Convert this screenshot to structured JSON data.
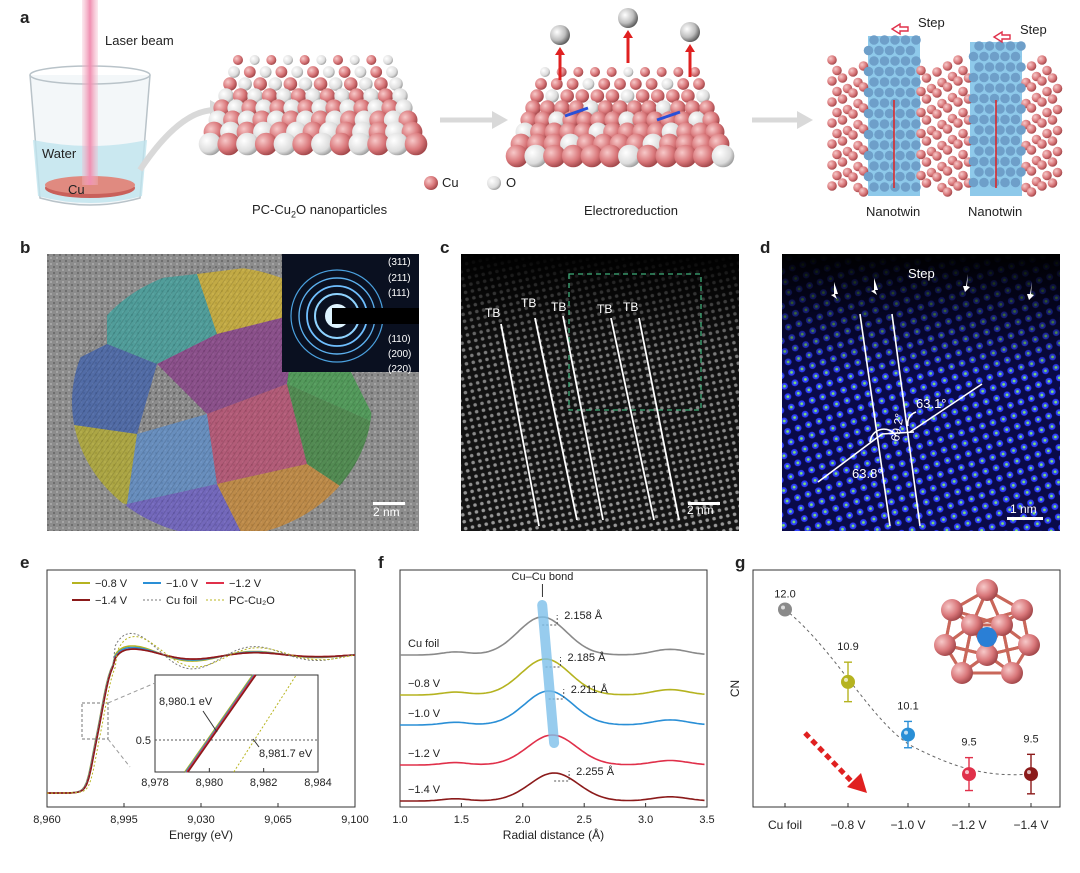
{
  "panel_letters": {
    "a": "a",
    "b": "b",
    "c": "c",
    "d": "d",
    "e": "e",
    "f": "f",
    "g": "g"
  },
  "panel_a": {
    "laser": "Laser beam",
    "water": "Water",
    "cu": "Cu",
    "caption1": "PC-Cu",
    "caption1_sub": "2",
    "caption1_tail": "O nanoparticles",
    "legend_cu": "Cu",
    "legend_o": "O",
    "caption2": "Electroreduction",
    "step1": "Step",
    "step2": "Step",
    "nanotwin1": "Nanotwin",
    "nanotwin2": "Nanotwin",
    "colors": {
      "cu": "#d9777a",
      "o": "#e8e8e8",
      "twin": "#8ec9ea"
    }
  },
  "panel_b": {
    "rings": [
      "(311)",
      "(211)",
      "(111)",
      "(110)",
      "(200)",
      "(220)"
    ],
    "scale": "2 nm"
  },
  "panel_c": {
    "tb_labels": [
      "TB",
      "TB",
      "TB",
      "TB",
      "TB"
    ],
    "scale": "2 nm"
  },
  "panel_d": {
    "step": "Step",
    "angle1": "63.1°",
    "angle2": "69.2°",
    "angle3": "63.8°",
    "scale": "1 nm"
  },
  "chart_data": [
    {
      "type": "line",
      "panel": "e",
      "xlabel": "Energy (eV)",
      "xlim": [
        8960,
        9100
      ],
      "xticks": [
        "8,960",
        "8,995",
        "9,030",
        "9,065",
        "9,100"
      ],
      "legend": [
        {
          "name": "−0.8 V",
          "color": "#b5b320",
          "dash": false
        },
        {
          "name": "−1.0 V",
          "color": "#2a8fd6",
          "dash": false
        },
        {
          "name": "−1.2 V",
          "color": "#e0304a",
          "dash": false
        },
        {
          "name": "−1.4 V",
          "color": "#8b1a1a",
          "dash": false
        },
        {
          "name": "Cu foil",
          "color": "#777777",
          "dash": true
        },
        {
          "name": "PC-Cu₂O",
          "color": "#b8b520",
          "dash": true
        }
      ],
      "inset": {
        "xticks": [
          "8,978",
          "8,980",
          "8,982",
          "8,984"
        ],
        "y_marker": "0.5",
        "ann1": "8,980.1 eV",
        "ann2": "8,981.7 eV"
      }
    },
    {
      "type": "line",
      "panel": "f",
      "xlabel": "Radial distance (Å)",
      "xlim": [
        1.0,
        3.5
      ],
      "xticks": [
        "1.0",
        "1.5",
        "2.0",
        "2.5",
        "3.0",
        "3.5"
      ],
      "bond_label": "Cu–Cu bond",
      "series": [
        {
          "name": "Cu foil",
          "color": "#8a8a8a",
          "peak": "2.158 Å",
          "peak_x": 2.158
        },
        {
          "name": "−0.8 V",
          "color": "#b5b320",
          "peak": "2.185 Å",
          "peak_x": 2.185
        },
        {
          "name": "−1.0 V",
          "color": "#2a8fd6",
          "peak": "2.211 Å",
          "peak_x": 2.211
        },
        {
          "name": "−1.2 V",
          "color": "#e0304a",
          "peak": "",
          "peak_x": 2.24
        },
        {
          "name": "−1.4 V",
          "color": "#8b1a1a",
          "peak": "2.255 Å",
          "peak_x": 2.255
        }
      ]
    },
    {
      "type": "scatter",
      "panel": "g",
      "ylabel": "CN",
      "categories": [
        "Cu foil",
        "−0.8 V",
        "−1.0 V",
        "−1.2 V",
        "−1.4 V"
      ],
      "values": [
        12.0,
        10.9,
        10.1,
        9.5,
        9.5
      ],
      "value_labels": [
        "12.0",
        "10.9",
        "10.1",
        "9.5",
        "9.5"
      ],
      "errors": [
        0,
        0.3,
        0.2,
        0.25,
        0.3
      ],
      "colors": [
        "#8a8a8a",
        "#b5b320",
        "#2a8fd6",
        "#e0304a",
        "#8b1a1a"
      ],
      "ylim": [
        9.0,
        12.6
      ]
    }
  ]
}
